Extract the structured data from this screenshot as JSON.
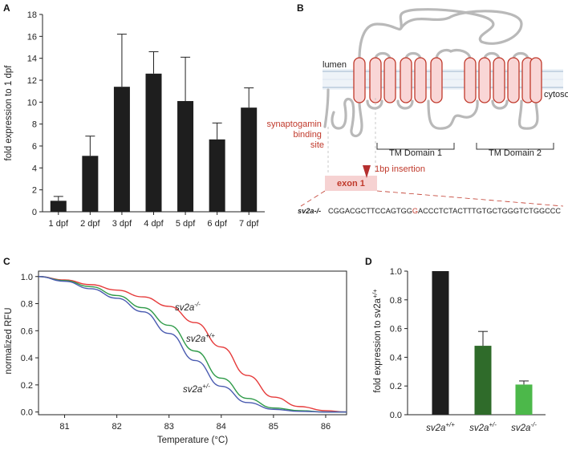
{
  "panels": {
    "A": {
      "label": "A",
      "chart_data": {
        "type": "bar",
        "categories": [
          "1 dpf",
          "2 dpf",
          "3 dpf",
          "4 dpf",
          "5 dpf",
          "6 dpf",
          "7 dpf"
        ],
        "values": [
          1.0,
          5.1,
          11.4,
          12.6,
          10.1,
          6.6,
          9.5
        ],
        "errors": [
          0.4,
          1.8,
          4.8,
          2.0,
          4.0,
          1.5,
          1.8
        ],
        "ylabel": "fold expression to 1 dpf",
        "ylim": [
          0,
          18
        ],
        "yticks": [
          0,
          2,
          4,
          6,
          8,
          10,
          12,
          14,
          16,
          18
        ],
        "bar_color": "#1e1e1e"
      }
    },
    "B": {
      "label": "B",
      "lumen_label": "lumen",
      "cytosol_label": "cytosol",
      "binding_site_lines": [
        "synaptogamin",
        "binding",
        "site"
      ],
      "tm_domain_1": "TM Domain 1",
      "tm_domain_2": "TM Domain 2",
      "insertion_label": "1bp insertion",
      "exon_label": "exon 1",
      "genotype_label": "sv2a-/-",
      "sequence_before": "CGGACGCTTCCAGTGG",
      "sequence_highlight": "G",
      "sequence_after": "ACCCTCTACTTTGTGCTGGGTCTGGCCC",
      "accent_color": "#c0392b",
      "helix_fill": "#f9d6d6"
    },
    "C": {
      "label": "C",
      "chart_data": {
        "type": "line",
        "xlabel": "Temperature (°C)",
        "ylabel": "normalized RFU",
        "xlim": [
          80.5,
          86.4
        ],
        "ylim": [
          0.0,
          1.0
        ],
        "xticks": [
          81,
          82,
          83,
          84,
          85,
          86
        ],
        "yticks": [
          0.0,
          0.2,
          0.4,
          0.6,
          0.8,
          1.0
        ],
        "series": [
          {
            "name": "sv2a-/-",
            "base": "sv2a",
            "sup": "-/-",
            "color": "#e63b3b",
            "x": [
              80.5,
              81.0,
              81.5,
              82.0,
              82.5,
              83.0,
              83.5,
              84.0,
              84.5,
              85.0,
              85.5,
              86.0,
              86.4
            ],
            "y": [
              1.0,
              0.975,
              0.94,
              0.9,
              0.85,
              0.78,
              0.66,
              0.48,
              0.27,
              0.11,
              0.04,
              0.01,
              0.0
            ]
          },
          {
            "name": "sv2a+/+",
            "base": "sv2a",
            "sup": "+/+",
            "color": "#2e9a48",
            "x": [
              80.5,
              81.0,
              81.5,
              82.0,
              82.5,
              83.0,
              83.5,
              84.0,
              84.5,
              85.0,
              85.5,
              86.0,
              86.4
            ],
            "y": [
              1.0,
              0.97,
              0.925,
              0.86,
              0.77,
              0.64,
              0.45,
              0.25,
              0.1,
              0.03,
              0.01,
              0.0,
              0.0
            ]
          },
          {
            "name": "sv2a+/-",
            "base": "sv2a",
            "sup": "+/-",
            "color": "#4a5bb0",
            "x": [
              80.5,
              81.0,
              81.5,
              82.0,
              82.5,
              83.0,
              83.5,
              84.0,
              84.5,
              85.0,
              85.5,
              86.0,
              86.4
            ],
            "y": [
              1.0,
              0.965,
              0.91,
              0.84,
              0.74,
              0.58,
              0.38,
              0.19,
              0.07,
              0.02,
              0.005,
              0.0,
              0.0
            ]
          }
        ]
      }
    },
    "D": {
      "label": "D",
      "chart_data": {
        "type": "bar",
        "categories": [
          {
            "base": "sv2a",
            "sup": "+/+"
          },
          {
            "base": "sv2a",
            "sup": "+/-"
          },
          {
            "base": "sv2a",
            "sup": "-/-"
          }
        ],
        "values": [
          1.0,
          0.48,
          0.21
        ],
        "errors": [
          0.0,
          0.1,
          0.025
        ],
        "colors": [
          "#1e1e1e",
          "#2f6b2a",
          "#4cb84a"
        ],
        "ylabel_base": "fold expression to sv2a",
        "ylabel_sup": "+/+",
        "ylim": [
          0.0,
          1.0
        ],
        "yticks": [
          0.0,
          0.2,
          0.4,
          0.6,
          0.8,
          1.0
        ]
      }
    }
  }
}
